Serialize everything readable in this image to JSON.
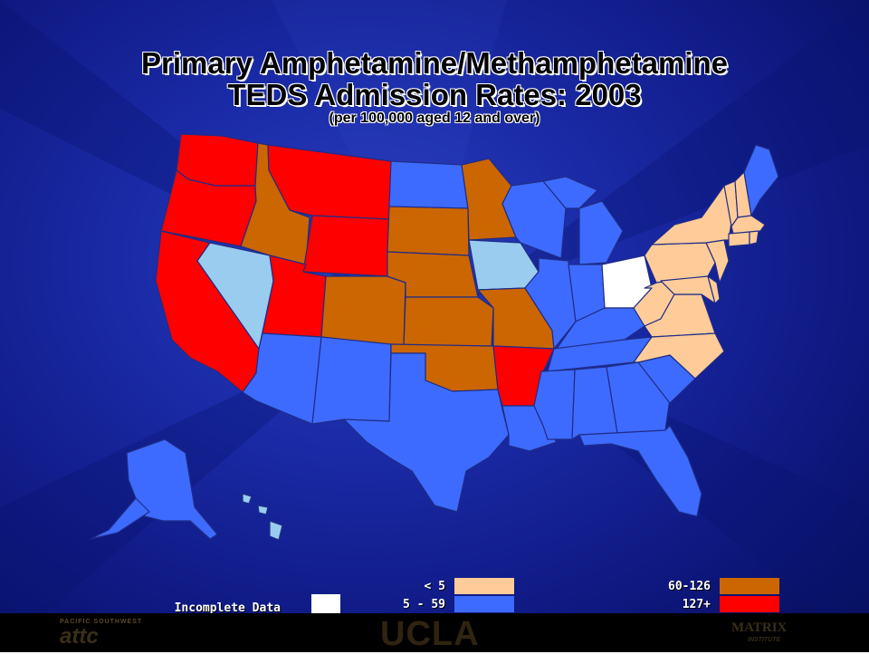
{
  "title_line1": "Primary Amphetamine/Methamphetamine",
  "title_line2": "TEDS Admission Rates: 2003",
  "subtitle": "(per 100,000 aged 12 and over)",
  "legend": {
    "incomplete": {
      "label": "Incomplete Data",
      "color": "#ffffff"
    },
    "lt5": {
      "label": "< 5",
      "color": "#ffcc99"
    },
    "r5_59": {
      "label": "5 - 59",
      "color": "#3d6bff"
    },
    "r60_126": {
      "label": "60-126",
      "color": "#cc6600"
    },
    "r127": {
      "label": "127+",
      "color": "#ff0000"
    }
  },
  "footer": {
    "left_logo_small": "PACIFIC SOUTHWEST",
    "left_logo": "attc",
    "center_logo": "UCLA",
    "right_logo": "MATRIX",
    "right_logo_small": "INSTITUTE"
  },
  "categories": {
    "incomplete": [
      "OH"
    ],
    "lt5": [
      "VT",
      "NH",
      "MA",
      "CT",
      "RI",
      "NY",
      "PA",
      "NJ",
      "DE",
      "MD",
      "WV",
      "VA",
      "NC"
    ],
    "r5_59": [
      "ME",
      "WI",
      "MI",
      "IL",
      "IN",
      "KY",
      "TN",
      "MS",
      "AL",
      "GA",
      "SC",
      "FL",
      "LA",
      "TX",
      "NM",
      "AZ",
      "ND",
      "AK"
    ],
    "r60_126": [
      "ID",
      "MN",
      "SD",
      "NE",
      "KS",
      "CO",
      "MO",
      "OK"
    ],
    "r127": [
      "WA",
      "OR",
      "CA",
      "MT",
      "WY",
      "UT",
      "AR"
    ],
    "light_blue": [
      "NV",
      "IA",
      "HI"
    ]
  },
  "light_blue_color": "#99ccee"
}
